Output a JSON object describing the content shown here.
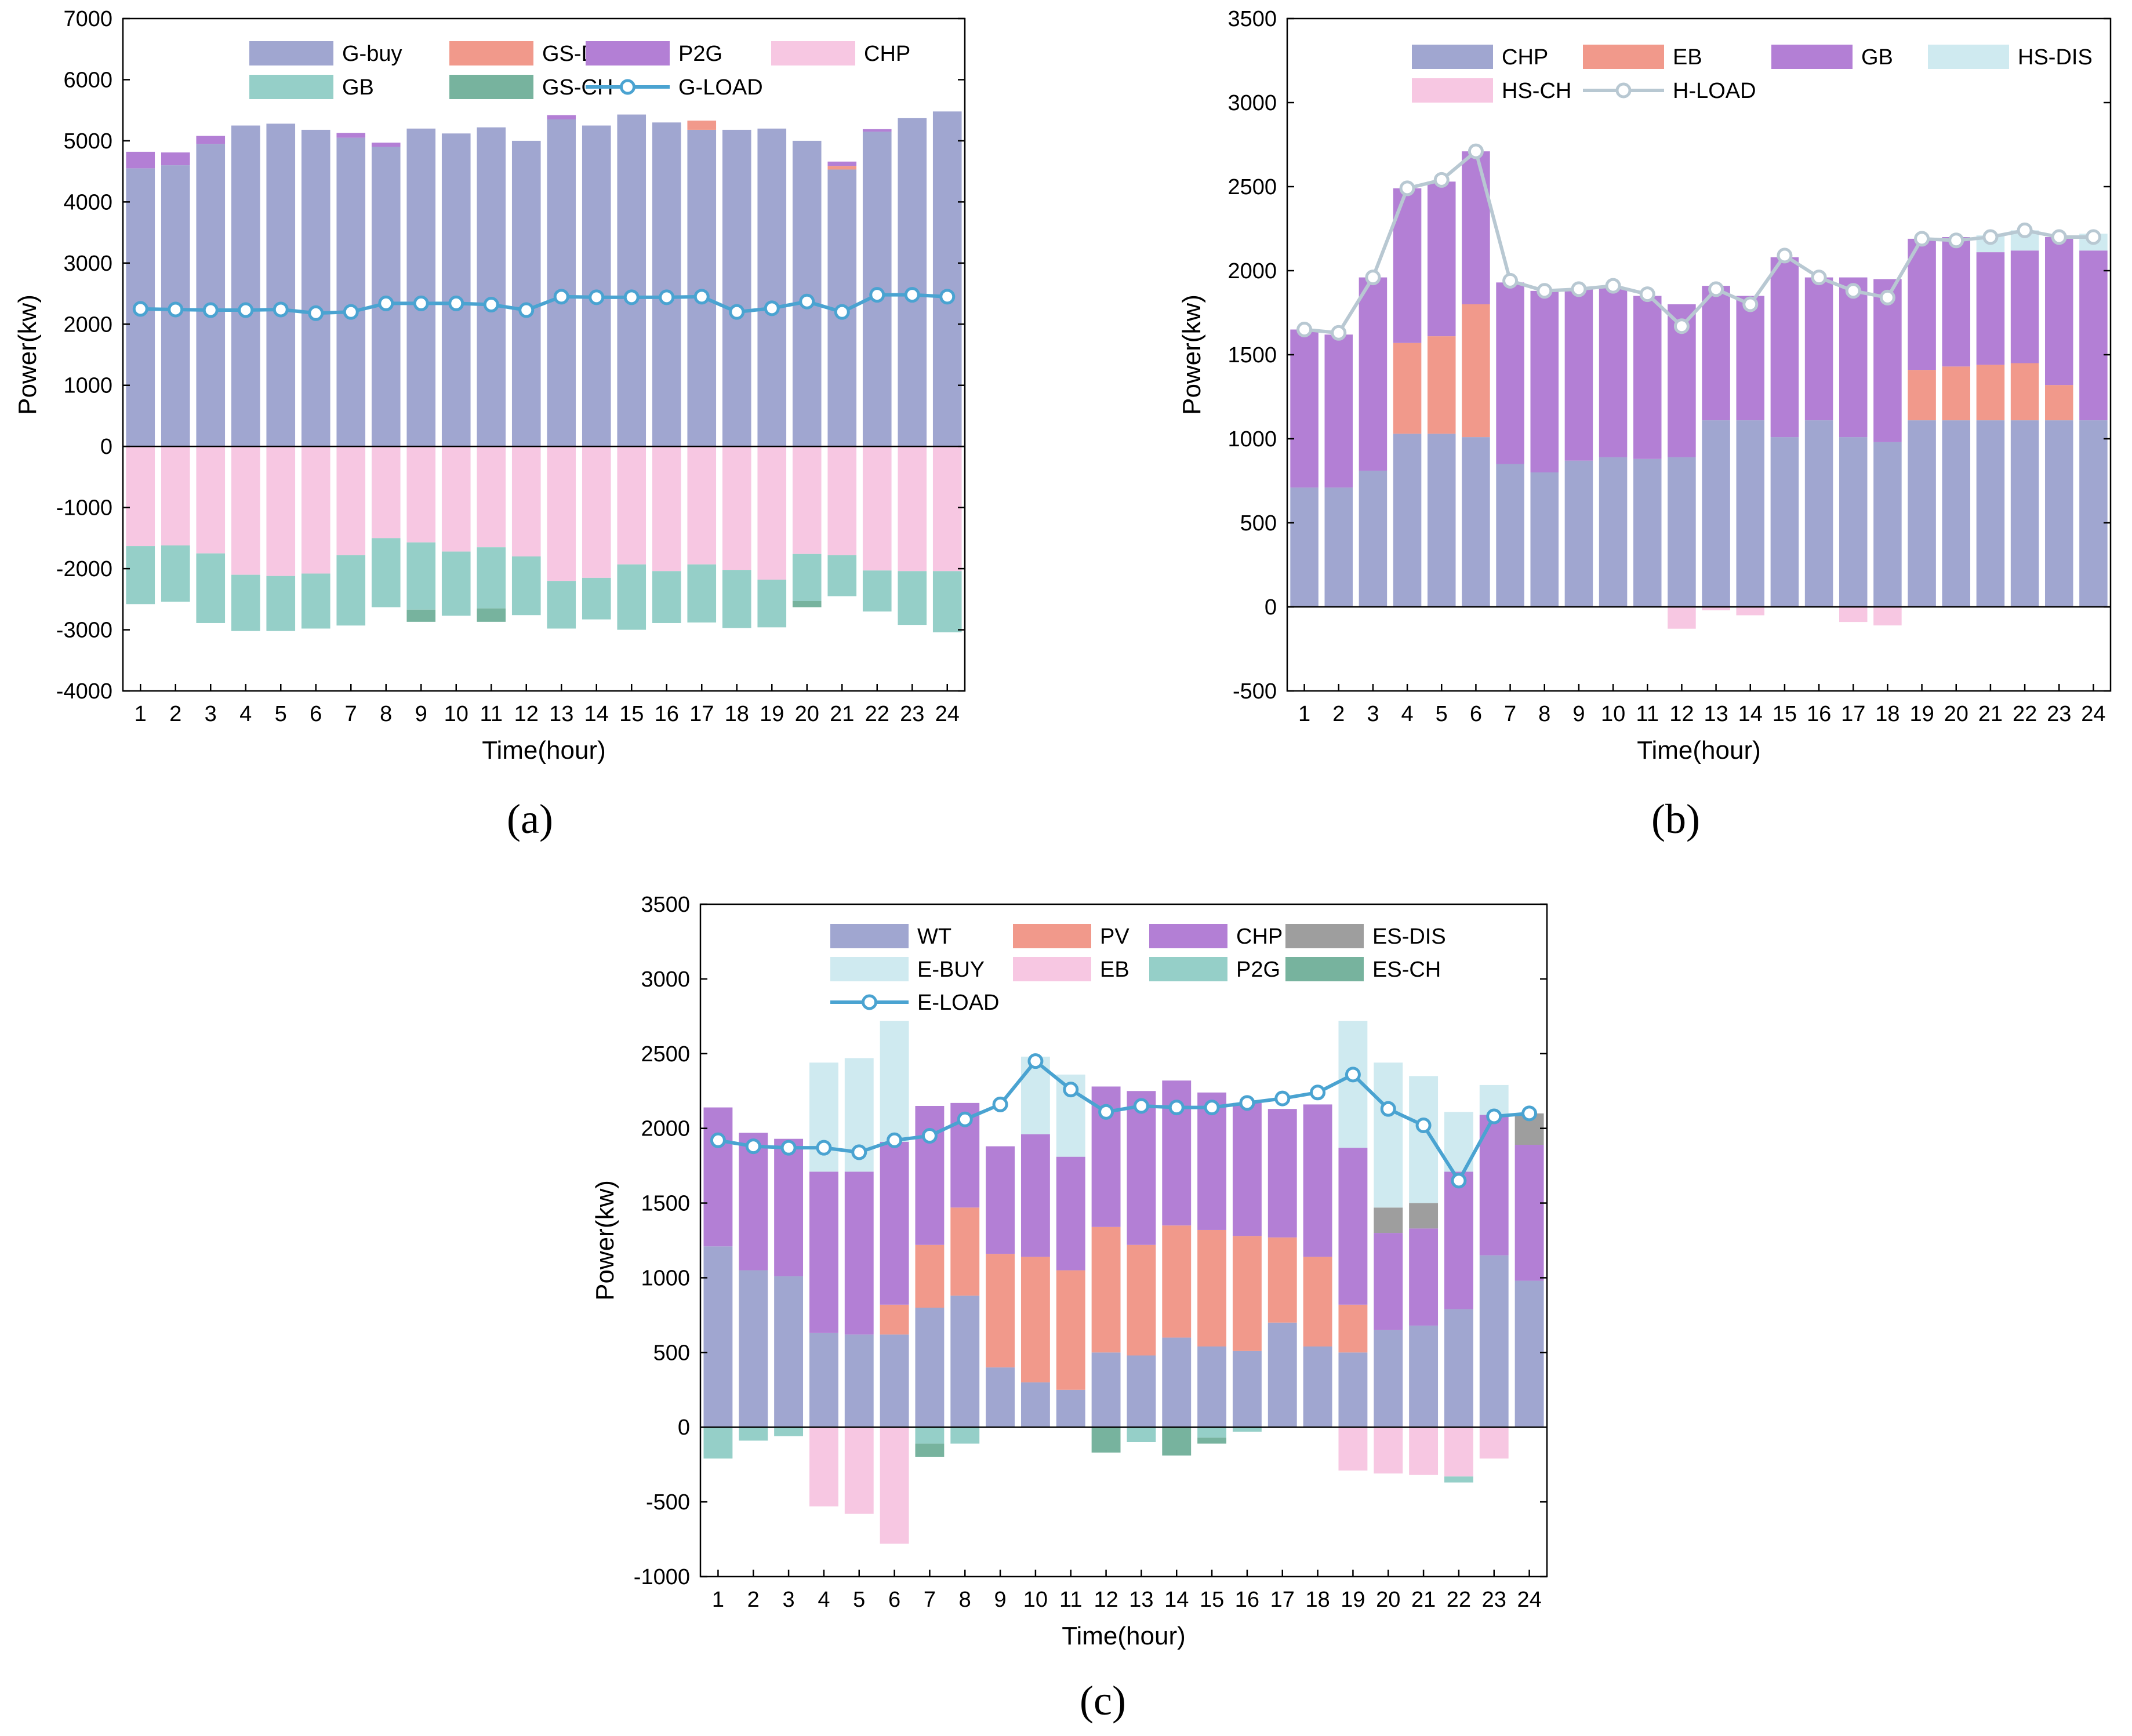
{
  "panel_labels": [
    "(a)",
    "(b)",
    "(c)"
  ],
  "chart_data": [
    {
      "type": "bar",
      "stacked": true,
      "title": "",
      "panel_label": "(a)",
      "xlabel": "Time(hour)",
      "ylabel": "Power(kw)",
      "ylim": [
        -4000,
        7000
      ],
      "yticks": [
        -4000,
        -3000,
        -2000,
        -1000,
        0,
        1000,
        2000,
        3000,
        4000,
        5000,
        6000,
        7000
      ],
      "categories": [
        "1",
        "2",
        "3",
        "4",
        "5",
        "6",
        "7",
        "8",
        "9",
        "10",
        "11",
        "12",
        "13",
        "14",
        "15",
        "16",
        "17",
        "18",
        "19",
        "20",
        "21",
        "22",
        "23",
        "24"
      ],
      "legend_position": "top",
      "legend_columns": 4,
      "series": [
        {
          "name": "G-buy",
          "color": "#a0a6d0",
          "sign": "pos",
          "values": [
            4550,
            4600,
            4950,
            5250,
            5280,
            5180,
            5050,
            4900,
            5200,
            5120,
            5220,
            5000,
            5350,
            5250,
            5430,
            5300,
            5180,
            5180,
            5200,
            5000,
            4530,
            5150,
            5370,
            5480
          ]
        },
        {
          "name": "GS-DIS",
          "color": "#f1998b",
          "sign": "pos",
          "values": [
            0,
            0,
            0,
            0,
            0,
            0,
            0,
            0,
            0,
            0,
            0,
            0,
            0,
            0,
            0,
            0,
            150,
            0,
            0,
            0,
            60,
            0,
            0,
            0
          ]
        },
        {
          "name": "P2G",
          "color": "#b37fd5",
          "sign": "pos",
          "values": [
            270,
            210,
            130,
            0,
            0,
            0,
            80,
            70,
            0,
            0,
            0,
            0,
            70,
            0,
            0,
            0,
            0,
            0,
            0,
            0,
            70,
            40,
            0,
            0
          ]
        },
        {
          "name": "CHP",
          "color": "#f7c7e2",
          "sign": "neg",
          "values": [
            -1630,
            -1620,
            -1750,
            -2100,
            -2120,
            -2080,
            -1780,
            -1500,
            -1570,
            -1720,
            -1650,
            -1800,
            -2200,
            -2150,
            -1930,
            -2040,
            -1930,
            -2020,
            -2180,
            -1760,
            -1780,
            -2030,
            -2040,
            -2040
          ]
        },
        {
          "name": "GB",
          "color": "#95cfc8",
          "sign": "neg",
          "values": [
            -950,
            -920,
            -1140,
            -920,
            -900,
            -900,
            -1150,
            -1130,
            -1100,
            -1050,
            -1000,
            -960,
            -780,
            -680,
            -1070,
            -850,
            -950,
            -950,
            -780,
            -770,
            -670,
            -670,
            -880,
            -1000
          ]
        },
        {
          "name": "GS-CH",
          "color": "#77b39e",
          "sign": "neg",
          "values": [
            0,
            0,
            0,
            0,
            0,
            0,
            0,
            0,
            -200,
            0,
            -220,
            0,
            0,
            0,
            0,
            0,
            0,
            0,
            0,
            -100,
            0,
            0,
            0,
            0
          ]
        }
      ],
      "line": {
        "name": "G-LOAD",
        "color": "#4aa3d1",
        "values": [
          2250,
          2240,
          2230,
          2230,
          2240,
          2180,
          2200,
          2340,
          2340,
          2340,
          2320,
          2230,
          2450,
          2440,
          2440,
          2440,
          2450,
          2200,
          2260,
          2370,
          2200,
          2480,
          2480,
          2450
        ]
      }
    },
    {
      "type": "bar",
      "stacked": true,
      "title": "",
      "panel_label": "(b)",
      "xlabel": "Time(hour)",
      "ylabel": "Power(kw)",
      "ylim": [
        -500,
        3500
      ],
      "yticks": [
        -500,
        0,
        500,
        1000,
        1500,
        2000,
        2500,
        3000,
        3500
      ],
      "categories": [
        "1",
        "2",
        "3",
        "4",
        "5",
        "6",
        "7",
        "8",
        "9",
        "10",
        "11",
        "12",
        "13",
        "14",
        "15",
        "16",
        "17",
        "18",
        "19",
        "20",
        "21",
        "22",
        "23",
        "24"
      ],
      "legend_position": "top",
      "legend_columns": 4,
      "series": [
        {
          "name": "CHP",
          "color": "#a0a6d0",
          "sign": "pos",
          "values": [
            710,
            710,
            810,
            1030,
            1030,
            1010,
            850,
            800,
            870,
            890,
            880,
            890,
            1110,
            1110,
            1010,
            1110,
            1010,
            980,
            1110,
            1110,
            1110,
            1110,
            1110,
            1110
          ]
        },
        {
          "name": "EB",
          "color": "#f1998b",
          "sign": "pos",
          "values": [
            0,
            0,
            0,
            540,
            580,
            790,
            0,
            0,
            0,
            0,
            0,
            0,
            0,
            0,
            0,
            0,
            0,
            0,
            300,
            320,
            330,
            340,
            210,
            0
          ]
        },
        {
          "name": "GB",
          "color": "#b37fd5",
          "sign": "pos",
          "values": [
            940,
            910,
            1150,
            920,
            920,
            910,
            1080,
            1080,
            1020,
            1010,
            970,
            910,
            800,
            740,
            1070,
            850,
            950,
            970,
            780,
            770,
            670,
            670,
            880,
            1010
          ]
        },
        {
          "name": "HS-DIS",
          "color": "#cfeaf0",
          "sign": "pos",
          "values": [
            0,
            0,
            0,
            0,
            0,
            0,
            0,
            0,
            0,
            0,
            0,
            0,
            0,
            0,
            0,
            0,
            0,
            0,
            0,
            0,
            100,
            120,
            0,
            100
          ]
        },
        {
          "name": "HS-CH",
          "color": "#f7c7e2",
          "sign": "neg",
          "values": [
            0,
            0,
            0,
            0,
            0,
            0,
            0,
            0,
            0,
            0,
            0,
            -130,
            -20,
            -50,
            0,
            0,
            -90,
            -110,
            0,
            0,
            0,
            0,
            0,
            0
          ]
        }
      ],
      "line": {
        "name": "H-LOAD",
        "color": "#b8c8d2",
        "values": [
          1650,
          1630,
          1960,
          2490,
          2540,
          2710,
          1940,
          1880,
          1890,
          1910,
          1860,
          1670,
          1890,
          1800,
          2090,
          1960,
          1880,
          1840,
          2190,
          2180,
          2200,
          2240,
          2200,
          2200
        ]
      }
    },
    {
      "type": "bar",
      "stacked": true,
      "title": "",
      "panel_label": "(c)",
      "xlabel": "Time(hour)",
      "ylabel": "Power(kw)",
      "ylim": [
        -1000,
        3500
      ],
      "yticks": [
        -1000,
        -500,
        0,
        500,
        1000,
        1500,
        2000,
        2500,
        3000,
        3500
      ],
      "categories": [
        "1",
        "2",
        "3",
        "4",
        "5",
        "6",
        "7",
        "8",
        "9",
        "10",
        "11",
        "12",
        "13",
        "14",
        "15",
        "16",
        "17",
        "18",
        "19",
        "20",
        "21",
        "22",
        "23",
        "24"
      ],
      "legend_position": "top",
      "legend_columns": 4,
      "series": [
        {
          "name": "WT",
          "color": "#a0a6d0",
          "sign": "pos",
          "values": [
            1210,
            1050,
            1010,
            630,
            620,
            620,
            800,
            880,
            400,
            300,
            250,
            500,
            480,
            600,
            540,
            510,
            700,
            540,
            500,
            650,
            680,
            790,
            1150,
            980
          ]
        },
        {
          "name": "PV",
          "color": "#f1998b",
          "sign": "pos",
          "values": [
            0,
            0,
            0,
            0,
            0,
            200,
            420,
            590,
            760,
            840,
            800,
            840,
            740,
            750,
            780,
            770,
            570,
            600,
            320,
            0,
            0,
            0,
            0,
            0
          ]
        },
        {
          "name": "CHP",
          "color": "#b37fd5",
          "sign": "pos",
          "values": [
            930,
            920,
            920,
            1080,
            1090,
            1090,
            930,
            700,
            720,
            820,
            760,
            940,
            1030,
            970,
            920,
            890,
            860,
            1020,
            1050,
            650,
            650,
            920,
            940,
            910
          ]
        },
        {
          "name": "ES-DIS",
          "color": "#9e9e9e",
          "sign": "pos",
          "values": [
            0,
            0,
            0,
            0,
            0,
            0,
            0,
            0,
            0,
            0,
            0,
            0,
            0,
            0,
            0,
            0,
            0,
            0,
            0,
            170,
            170,
            0,
            0,
            210
          ]
        },
        {
          "name": "E-BUY",
          "color": "#cfeaf0",
          "sign": "pos",
          "values": [
            0,
            0,
            0,
            730,
            760,
            810,
            0,
            0,
            0,
            520,
            550,
            0,
            0,
            0,
            0,
            0,
            0,
            0,
            850,
            970,
            850,
            400,
            200,
            0
          ]
        },
        {
          "name": "EB",
          "color": "#f7c7e2",
          "sign": "neg",
          "values": [
            0,
            0,
            0,
            -530,
            -580,
            -780,
            0,
            0,
            0,
            0,
            0,
            0,
            0,
            0,
            0,
            0,
            0,
            0,
            -290,
            -310,
            -320,
            -330,
            -210,
            0
          ]
        },
        {
          "name": "P2G",
          "color": "#95cfc8",
          "sign": "neg",
          "values": [
            -210,
            -90,
            -60,
            0,
            0,
            0,
            -110,
            -110,
            0,
            0,
            0,
            0,
            -100,
            0,
            -70,
            -30,
            0,
            0,
            0,
            0,
            0,
            -40,
            0,
            0
          ]
        },
        {
          "name": "ES-CH",
          "color": "#77b39e",
          "sign": "neg",
          "values": [
            0,
            0,
            0,
            0,
            0,
            0,
            -90,
            0,
            0,
            0,
            0,
            -170,
            0,
            -190,
            -40,
            0,
            0,
            0,
            0,
            0,
            0,
            0,
            0,
            0
          ]
        }
      ],
      "line": {
        "name": "E-LOAD",
        "color": "#4aa3d1",
        "values": [
          1920,
          1880,
          1870,
          1870,
          1840,
          1920,
          1950,
          2060,
          2160,
          2450,
          2260,
          2110,
          2150,
          2140,
          2140,
          2170,
          2200,
          2240,
          2360,
          2130,
          2020,
          1650,
          2080,
          2100
        ]
      }
    }
  ]
}
